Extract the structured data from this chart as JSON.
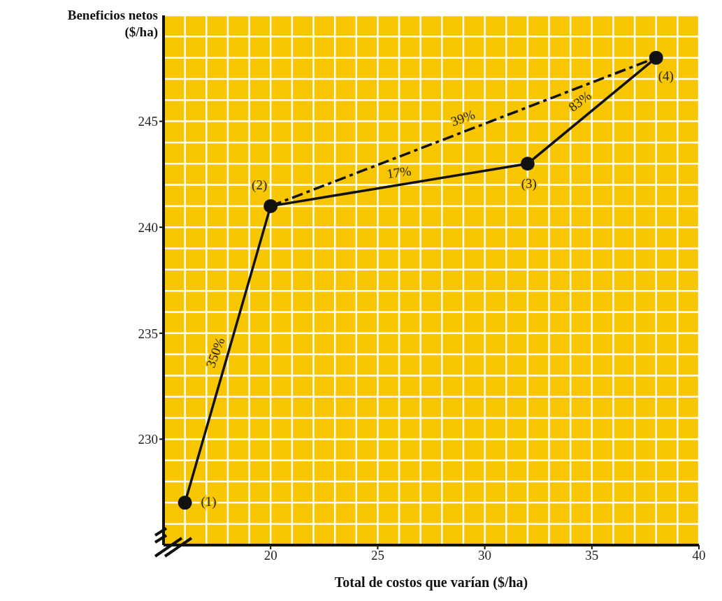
{
  "chart_data": {
    "type": "line",
    "xlabel": "Total de costos que varían ($/ha)",
    "ylabel": "Beneficios netos ($/ha)",
    "xlim": [
      15,
      40
    ],
    "xticks": [
      20,
      25,
      30,
      35,
      40
    ],
    "ylim": [
      225,
      250
    ],
    "yticks": [
      230,
      235,
      240,
      245
    ],
    "grid": true,
    "series": [
      {
        "color": "#111111",
        "x": [
          16,
          20,
          32,
          38
        ],
        "values": [
          227,
          241,
          243,
          248
        ],
        "marker": "circle",
        "line_style": "solid"
      },
      {
        "color": "#111111",
        "x": [
          20,
          38
        ],
        "values": [
          241,
          248
        ],
        "marker": "none",
        "line_style": "dashed"
      }
    ],
    "annotations": [
      {
        "text": "(1)",
        "x": 16,
        "y": 227
      },
      {
        "text": "(2)",
        "x": 20,
        "y": 241
      },
      {
        "text": "(3)",
        "x": 32,
        "y": 243
      },
      {
        "text": "(4)",
        "x": 38,
        "y": 248
      },
      {
        "text": "350%",
        "x": 18,
        "y": 234
      },
      {
        "text": "17%",
        "x": 26,
        "y": 242
      },
      {
        "text": "39%",
        "x": 29,
        "y": 244.5
      },
      {
        "text": "83%",
        "x": 35,
        "y": 245.5
      }
    ]
  }
}
